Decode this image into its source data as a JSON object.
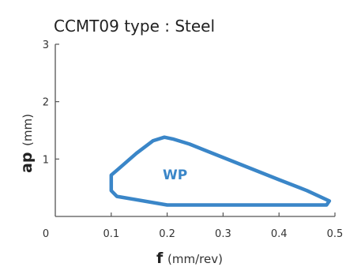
{
  "chart_data": {
    "type": "area",
    "title": "CCMT09 type : Steel",
    "x_axis": {
      "label_main": "f",
      "label_unit": "(mm/rev)",
      "range": [
        0,
        0.5
      ],
      "ticks": [
        0,
        0.1,
        0.2,
        0.3,
        0.4,
        0.5
      ],
      "tick_labels": [
        "0",
        "0.1",
        "0.2",
        "0.3",
        "0.4",
        "0.5"
      ]
    },
    "y_axis": {
      "label_main": "ap",
      "label_unit": "(mm)",
      "range": [
        0,
        3
      ],
      "ticks": [
        1,
        2,
        3
      ],
      "tick_labels": [
        "1",
        "2",
        "3"
      ]
    },
    "grid": false,
    "legend": "none",
    "region": {
      "name": "WP",
      "color": "#3a86c8",
      "points": [
        [
          0.1,
          0.72
        ],
        [
          0.112,
          0.82
        ],
        [
          0.145,
          1.1
        ],
        [
          0.175,
          1.32
        ],
        [
          0.195,
          1.38
        ],
        [
          0.21,
          1.35
        ],
        [
          0.24,
          1.26
        ],
        [
          0.32,
          0.95
        ],
        [
          0.4,
          0.64
        ],
        [
          0.45,
          0.45
        ],
        [
          0.49,
          0.27
        ],
        [
          0.485,
          0.2
        ],
        [
          0.44,
          0.2
        ],
        [
          0.2,
          0.2
        ],
        [
          0.11,
          0.35
        ],
        [
          0.1,
          0.45
        ]
      ]
    }
  }
}
